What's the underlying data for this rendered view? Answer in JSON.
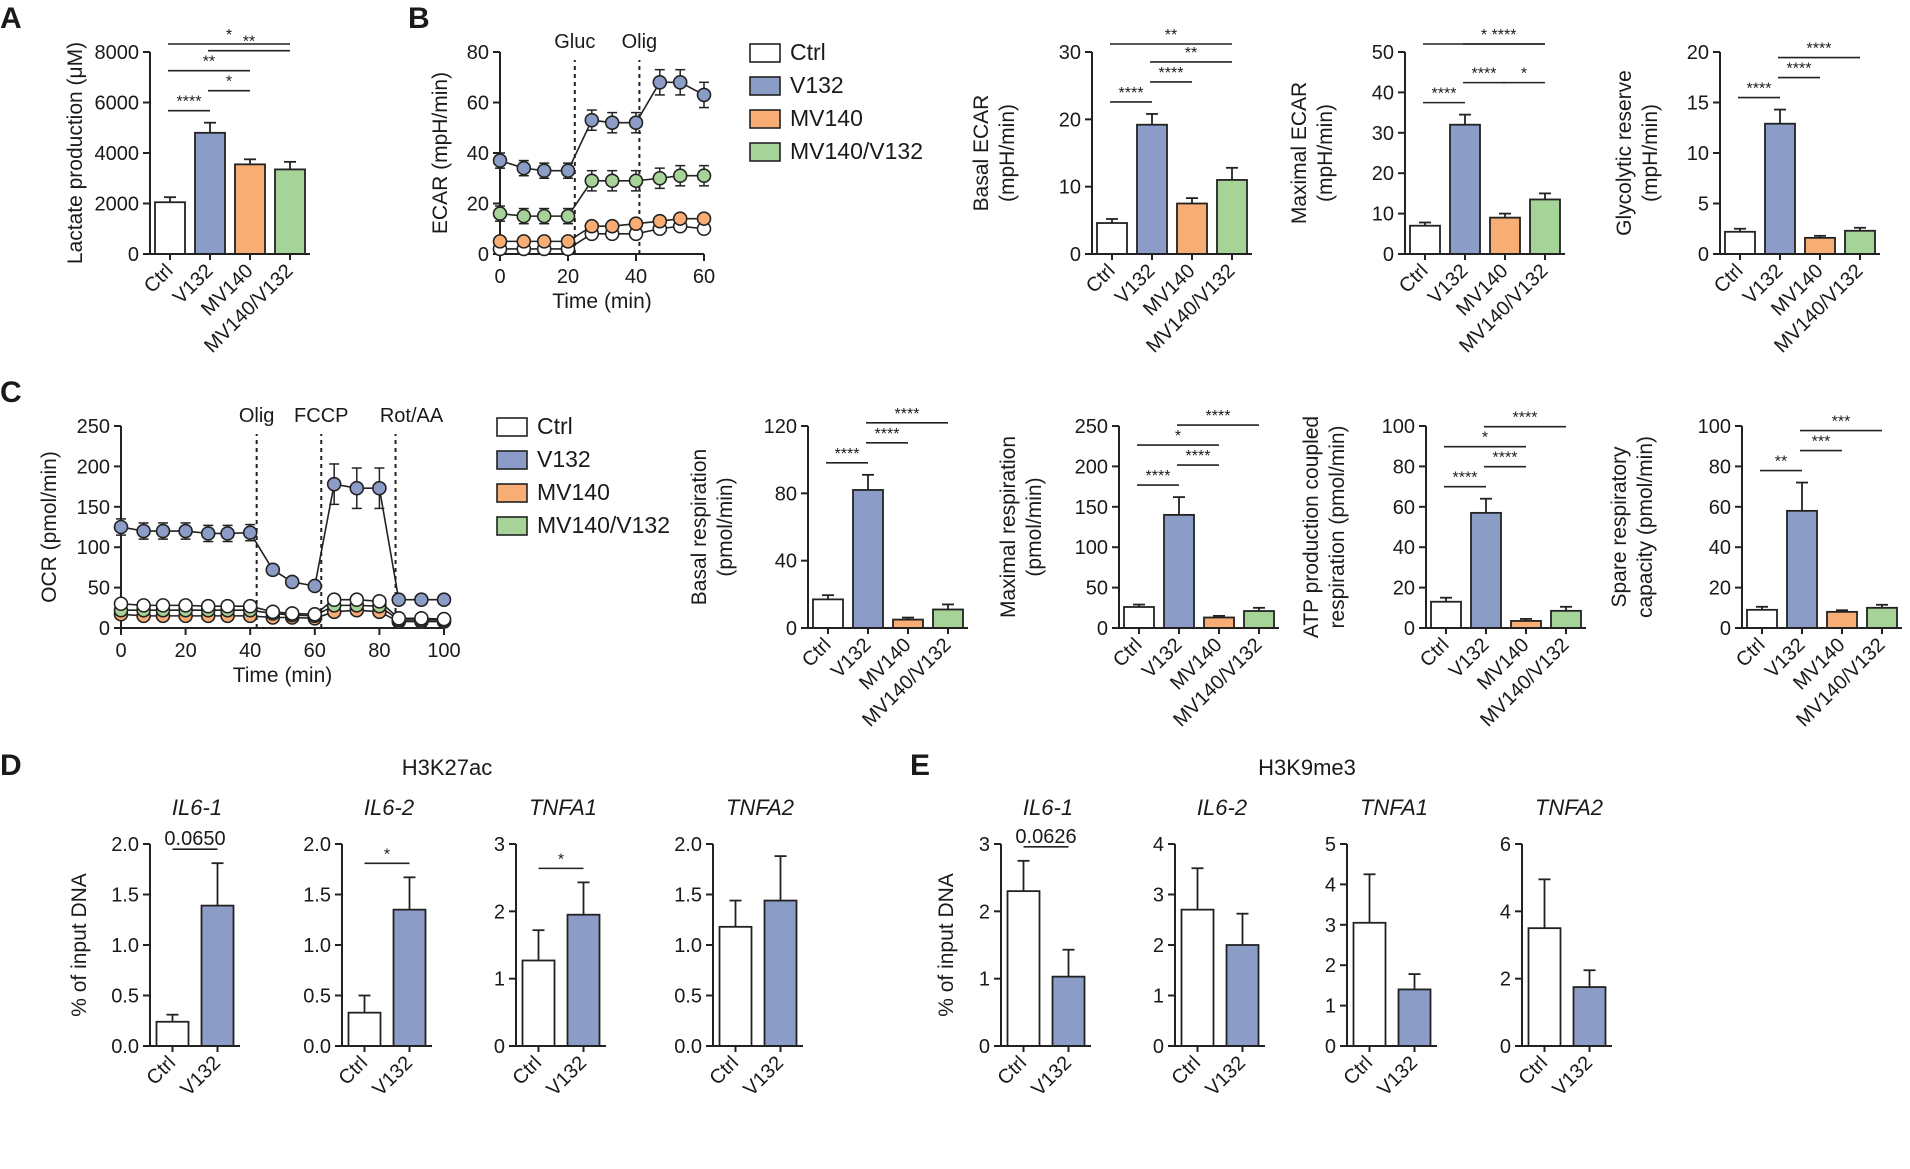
{
  "panel_labels": [
    "A",
    "B",
    "C",
    "D",
    "E"
  ],
  "colors": {
    "Ctrl": "#ffffff",
    "V132": "#8b9cc6",
    "MV140": "#f7ad74",
    "MV140/V132": "#a6d398",
    "axis": "#222222"
  },
  "legend": {
    "items": [
      "Ctrl",
      "V132",
      "MV140",
      "MV140/V132"
    ]
  },
  "chart_data": [
    {
      "id": "A-lactate",
      "panel": "A",
      "type": "bar",
      "ylabel": "Lactate production (μM)",
      "ylim": [
        0,
        8000
      ],
      "yticks": [
        0,
        2000,
        4000,
        6000,
        8000
      ],
      "categories": [
        "Ctrl",
        "V132",
        "MV140",
        "MV140/V132"
      ],
      "values": [
        2050,
        4800,
        3550,
        3350
      ],
      "errors": [
        200,
        400,
        200,
        300
      ],
      "sig": [
        {
          "a": 0,
          "b": 1,
          "label": "****"
        },
        {
          "a": 1,
          "b": 2,
          "label": "*"
        },
        {
          "a": 0,
          "b": 2,
          "label": "**"
        },
        {
          "a": 1,
          "b": 3,
          "label": "**"
        },
        {
          "a": 0,
          "b": 3,
          "label": "*"
        }
      ]
    },
    {
      "id": "B-ecar-time",
      "panel": "B",
      "type": "line",
      "ylabel": "ECAR (mpH/min)",
      "xlabel": "Time (min)",
      "xlim": [
        0,
        60
      ],
      "ylim": [
        0,
        80
      ],
      "xticks": [
        0,
        20,
        40,
        60
      ],
      "yticks": [
        0,
        20,
        40,
        60,
        80
      ],
      "x": [
        0,
        7,
        13,
        20,
        27,
        33,
        40,
        47,
        53,
        60
      ],
      "annotations": [
        {
          "x": 22,
          "label": "Gluc"
        },
        {
          "x": 41,
          "label": "Olig"
        }
      ],
      "series": [
        {
          "name": "V132",
          "values": [
            37,
            34,
            33,
            33,
            53,
            52,
            52,
            68,
            68,
            63
          ],
          "errors": [
            3,
            3,
            3,
            3,
            4,
            4,
            4,
            5,
            5,
            5
          ]
        },
        {
          "name": "MV140/V132",
          "values": [
            16,
            15,
            15,
            15,
            29,
            29,
            29,
            30,
            31,
            31
          ],
          "errors": [
            3,
            3,
            3,
            3,
            4,
            4,
            4,
            4,
            4,
            4
          ]
        },
        {
          "name": "MV140",
          "values": [
            5,
            5,
            5,
            5,
            11,
            11,
            12,
            13,
            14,
            14
          ],
          "errors": [
            1,
            1,
            1,
            1,
            1,
            1,
            1,
            1,
            1,
            1
          ]
        },
        {
          "name": "Ctrl",
          "values": [
            2,
            2,
            2,
            2,
            8,
            8,
            8,
            10,
            11,
            10
          ],
          "errors": [
            1,
            1,
            1,
            1,
            1,
            1,
            1,
            1,
            1,
            1
          ]
        }
      ]
    },
    {
      "id": "B-basal-ecar",
      "panel": "B",
      "type": "bar",
      "ylabel": "Basal ECAR\n(mpH/min)",
      "ylim": [
        0,
        30
      ],
      "yticks": [
        0,
        10,
        20,
        30
      ],
      "categories": [
        "Ctrl",
        "V132",
        "MV140",
        "MV140/V132"
      ],
      "values": [
        4.6,
        19.2,
        7.5,
        11
      ],
      "errors": [
        0.6,
        1.6,
        0.8,
        1.8
      ],
      "sig": [
        {
          "a": 0,
          "b": 1,
          "label": "****"
        },
        {
          "a": 1,
          "b": 2,
          "label": "****"
        },
        {
          "a": 1,
          "b": 3,
          "label": "**"
        },
        {
          "a": 0,
          "b": 3,
          "label": "**"
        }
      ]
    },
    {
      "id": "B-max-ecar",
      "panel": "B",
      "type": "bar",
      "ylabel": "Maximal ECAR\n(mpH/min)",
      "ylim": [
        0,
        50
      ],
      "yticks": [
        0,
        10,
        20,
        30,
        40,
        50
      ],
      "categories": [
        "Ctrl",
        "V132",
        "MV140",
        "MV140/V132"
      ],
      "values": [
        7,
        32,
        9,
        13.5
      ],
      "errors": [
        0.8,
        2.5,
        1,
        1.5
      ],
      "sig": [
        {
          "a": 0,
          "b": 1,
          "label": "****"
        },
        {
          "a": 1,
          "b": 2,
          "label": "****"
        },
        {
          "a": 2,
          "b": 3,
          "label": "*"
        },
        {
          "a": 1,
          "b": 3,
          "label": "****"
        },
        {
          "a": 0,
          "b": 3,
          "label": "*"
        }
      ]
    },
    {
      "id": "B-glyco-reserve",
      "panel": "B",
      "type": "bar",
      "ylabel": "Glycolytic reserve\n(mpH/min)",
      "ylim": [
        0,
        20
      ],
      "yticks": [
        0,
        5,
        10,
        15,
        20
      ],
      "categories": [
        "Ctrl",
        "V132",
        "MV140",
        "MV140/V132"
      ],
      "values": [
        2.2,
        12.9,
        1.6,
        2.3
      ],
      "errors": [
        0.3,
        1.4,
        0.2,
        0.3
      ],
      "sig": [
        {
          "a": 0,
          "b": 1,
          "label": "****"
        },
        {
          "a": 1,
          "b": 2,
          "label": "****"
        },
        {
          "a": 1,
          "b": 3,
          "label": "****"
        }
      ]
    },
    {
      "id": "C-ocr-time",
      "panel": "C",
      "type": "line",
      "ylabel": "OCR (pmol/min)",
      "xlabel": "Time (min)",
      "xlim": [
        0,
        100
      ],
      "ylim": [
        0,
        250
      ],
      "xticks": [
        0,
        20,
        40,
        60,
        80,
        100
      ],
      "yticks": [
        0,
        50,
        100,
        150,
        200,
        250
      ],
      "x": [
        0,
        7,
        13,
        20,
        27,
        33,
        40,
        47,
        53,
        60,
        66,
        73,
        80,
        86,
        93,
        100
      ],
      "annotations": [
        {
          "x": 42,
          "label": "Olig"
        },
        {
          "x": 62,
          "label": "FCCP"
        },
        {
          "x": 85,
          "label": "Rot/AA"
        }
      ],
      "series": [
        {
          "name": "V132",
          "values": [
            125,
            120,
            120,
            120,
            117,
            117,
            118,
            72,
            57,
            52,
            178,
            173,
            173,
            35,
            35,
            35
          ],
          "errors": [
            10,
            10,
            10,
            10,
            10,
            10,
            10,
            6,
            4,
            4,
            25,
            25,
            25,
            3,
            3,
            3
          ]
        },
        {
          "name": "Ctrl",
          "values": [
            30,
            28,
            28,
            28,
            27,
            27,
            27,
            20,
            18,
            17,
            35,
            35,
            33,
            12,
            12,
            11
          ],
          "errors": [
            3,
            3,
            3,
            3,
            3,
            3,
            3,
            2,
            2,
            2,
            4,
            4,
            4,
            2,
            2,
            2
          ]
        },
        {
          "name": "MV140/V132",
          "values": [
            22,
            22,
            22,
            22,
            22,
            22,
            22,
            18,
            16,
            15,
            28,
            28,
            27,
            10,
            10,
            10
          ],
          "errors": [
            2,
            2,
            2,
            2,
            2,
            2,
            2,
            2,
            2,
            2,
            3,
            3,
            3,
            1,
            1,
            1
          ]
        },
        {
          "name": "MV140",
          "values": [
            17,
            15,
            15,
            15,
            15,
            15,
            15,
            13,
            13,
            12,
            20,
            22,
            20,
            8,
            8,
            8
          ],
          "errors": [
            2,
            2,
            2,
            2,
            2,
            2,
            2,
            2,
            2,
            2,
            3,
            3,
            3,
            1,
            1,
            1
          ]
        }
      ]
    },
    {
      "id": "C-basal-resp",
      "panel": "C",
      "type": "bar",
      "ylabel": "Basal respiration\n(pmol/min)",
      "ylim": [
        0,
        120
      ],
      "yticks": [
        0,
        40,
        80,
        120
      ],
      "categories": [
        "Ctrl",
        "V132",
        "MV140",
        "MV140/V132"
      ],
      "values": [
        17,
        82,
        5,
        11
      ],
      "errors": [
        2.5,
        9,
        1.2,
        3
      ],
      "sig": [
        {
          "a": 0,
          "b": 1,
          "label": "****"
        },
        {
          "a": 1,
          "b": 2,
          "label": "****"
        },
        {
          "a": 1,
          "b": 3,
          "label": "****"
        }
      ]
    },
    {
      "id": "C-max-resp",
      "panel": "C",
      "type": "bar",
      "ylabel": "Maximal respiration\n(pmol/min)",
      "ylim": [
        0,
        250
      ],
      "yticks": [
        0,
        50,
        100,
        150,
        200,
        250
      ],
      "categories": [
        "Ctrl",
        "V132",
        "MV140",
        "MV140/V132"
      ],
      "values": [
        26,
        140,
        13,
        21
      ],
      "errors": [
        3,
        22,
        2,
        4
      ],
      "sig": [
        {
          "a": 0,
          "b": 1,
          "label": "****"
        },
        {
          "a": 1,
          "b": 2,
          "label": "****"
        },
        {
          "a": 0,
          "b": 2,
          "label": "*"
        },
        {
          "a": 1,
          "b": 3,
          "label": "****"
        }
      ]
    },
    {
      "id": "C-atp-resp",
      "panel": "C",
      "type": "bar",
      "ylabel": "ATP production coupled\nrespiration (pmol/min)",
      "ylim": [
        0,
        100
      ],
      "yticks": [
        0,
        20,
        40,
        60,
        80,
        100
      ],
      "categories": [
        "Ctrl",
        "V132",
        "MV140",
        "MV140/V132"
      ],
      "values": [
        13,
        57,
        3.5,
        8.5
      ],
      "errors": [
        2,
        7,
        1,
        2
      ],
      "sig": [
        {
          "a": 0,
          "b": 1,
          "label": "****"
        },
        {
          "a": 1,
          "b": 2,
          "label": "****"
        },
        {
          "a": 0,
          "b": 2,
          "label": "*"
        },
        {
          "a": 1,
          "b": 3,
          "label": "****"
        }
      ]
    },
    {
      "id": "C-spare-cap",
      "panel": "C",
      "type": "bar",
      "ylabel": "Spare respiratory\ncapacity (pmol/min)",
      "ylim": [
        0,
        100
      ],
      "yticks": [
        0,
        20,
        40,
        60,
        80,
        100
      ],
      "categories": [
        "Ctrl",
        "V132",
        "MV140",
        "MV140/V132"
      ],
      "values": [
        9,
        58,
        8,
        10
      ],
      "errors": [
        1.5,
        14,
        0.8,
        1.5
      ],
      "sig": [
        {
          "a": 0,
          "b": 1,
          "label": "**"
        },
        {
          "a": 1,
          "b": 2,
          "label": "***"
        },
        {
          "a": 1,
          "b": 3,
          "label": "***"
        }
      ]
    },
    {
      "id": "D-IL6-1",
      "panel": "D",
      "type": "bar",
      "group": "H3K27ac",
      "title": "IL6-1",
      "ylabel": "% of input DNA",
      "ylim": [
        0,
        2.0
      ],
      "yticks": [
        "0.0",
        "0.5",
        "1.0",
        "1.5",
        "2.0"
      ],
      "categories": [
        "Ctrl",
        "V132"
      ],
      "values": [
        0.24,
        1.39
      ],
      "errors": [
        0.07,
        0.42
      ],
      "sig": [
        {
          "a": 0,
          "b": 1,
          "label": "0.0650"
        }
      ]
    },
    {
      "id": "D-IL6-2",
      "panel": "D",
      "type": "bar",
      "group": "H3K27ac",
      "title": "IL6-2",
      "ylabel": "",
      "ylim": [
        0,
        2.0
      ],
      "yticks": [
        "0.0",
        "0.5",
        "1.0",
        "1.5",
        "2.0"
      ],
      "categories": [
        "Ctrl",
        "V132"
      ],
      "values": [
        0.33,
        1.35
      ],
      "errors": [
        0.17,
        0.32
      ],
      "sig": [
        {
          "a": 0,
          "b": 1,
          "label": "*"
        }
      ]
    },
    {
      "id": "D-TNFA1",
      "panel": "D",
      "type": "bar",
      "group": "H3K27ac",
      "title": "TNFA1",
      "ylabel": "",
      "ylim": [
        0,
        3
      ],
      "yticks": [
        "0",
        "1",
        "2",
        "3"
      ],
      "categories": [
        "Ctrl",
        "V132"
      ],
      "values": [
        1.27,
        1.95
      ],
      "errors": [
        0.45,
        0.48
      ],
      "sig": [
        {
          "a": 0,
          "b": 1,
          "label": "*"
        }
      ]
    },
    {
      "id": "D-TNFA2",
      "panel": "D",
      "type": "bar",
      "group": "H3K27ac",
      "title": "TNFA2",
      "ylabel": "",
      "ylim": [
        0,
        2.0
      ],
      "yticks": [
        "0.0",
        "0.5",
        "1.0",
        "1.5",
        "2.0"
      ],
      "categories": [
        "Ctrl",
        "V132"
      ],
      "values": [
        1.18,
        1.44
      ],
      "errors": [
        0.26,
        0.44
      ],
      "sig": []
    },
    {
      "id": "E-IL6-1",
      "panel": "E",
      "type": "bar",
      "group": "H3K9me3",
      "title": "IL6-1",
      "ylabel": "% of input DNA",
      "ylim": [
        0,
        3
      ],
      "yticks": [
        "0",
        "1",
        "2",
        "3"
      ],
      "categories": [
        "Ctrl",
        "V132"
      ],
      "values": [
        2.3,
        1.03
      ],
      "errors": [
        0.45,
        0.4
      ],
      "sig": [
        {
          "a": 0,
          "b": 1,
          "label": "0.0626"
        }
      ]
    },
    {
      "id": "E-IL6-2",
      "panel": "E",
      "type": "bar",
      "group": "H3K9me3",
      "title": "IL6-2",
      "ylabel": "",
      "ylim": [
        0,
        4
      ],
      "yticks": [
        "0",
        "1",
        "2",
        "3",
        "4"
      ],
      "categories": [
        "Ctrl",
        "V132"
      ],
      "values": [
        2.7,
        2.0
      ],
      "errors": [
        0.82,
        0.62
      ],
      "sig": []
    },
    {
      "id": "E-TNFA1",
      "panel": "E",
      "type": "bar",
      "group": "H3K9me3",
      "title": "TNFA1",
      "ylabel": "",
      "ylim": [
        0,
        5
      ],
      "yticks": [
        "0",
        "1",
        "2",
        "3",
        "4",
        "5"
      ],
      "categories": [
        "Ctrl",
        "V132"
      ],
      "values": [
        3.05,
        1.4
      ],
      "errors": [
        1.2,
        0.38
      ],
      "sig": []
    },
    {
      "id": "E-TNFA2",
      "panel": "E",
      "type": "bar",
      "group": "H3K9me3",
      "title": "TNFA2",
      "ylabel": "",
      "ylim": [
        0,
        6
      ],
      "yticks": [
        "0",
        "2",
        "4",
        "6"
      ],
      "categories": [
        "Ctrl",
        "V132"
      ],
      "values": [
        3.5,
        1.75
      ],
      "errors": [
        1.45,
        0.5
      ],
      "sig": []
    }
  ],
  "group_titles": {
    "D": "H3K27ac",
    "E": "H3K9me3"
  }
}
